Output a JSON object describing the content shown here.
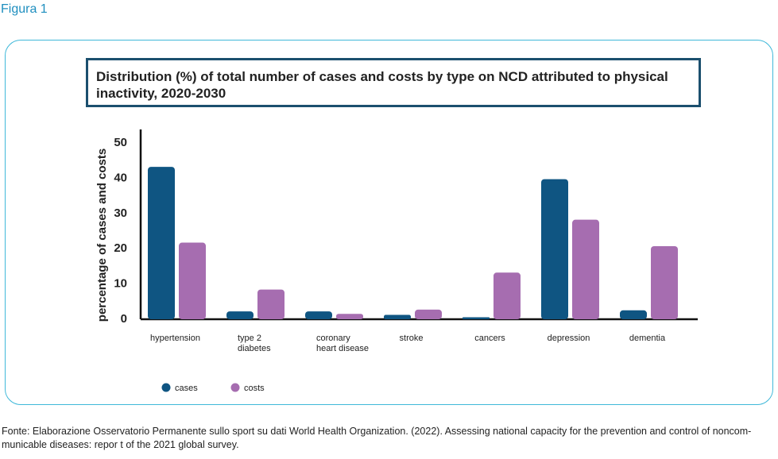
{
  "figure_label": "Figura 1",
  "source_line1": "Fonte: Elaborazione Osservatorio Permanente sullo sport su dati  World Health Organization. (2022). Assessing national capacity for the prevention and control of noncom-",
  "source_line2": "municable diseases: repor t of the 2021 global survey.",
  "colors": {
    "cases": "#0f5582",
    "costs": "#a66db0",
    "border": "#3fb8d9",
    "title_border": "#1b4f6e"
  },
  "chart_data": {
    "type": "bar",
    "title_line1": "Distribution (%) of total number of cases and costs by type on NCD attributed to physical",
    "title_line2": "inactivity, 2020-2030",
    "ylabel": "percentage of cases and costs",
    "ylim": [
      0,
      50
    ],
    "yticks": [
      "0",
      "10",
      "20",
      "30",
      "40",
      "50"
    ],
    "categories": [
      [
        "hypertension"
      ],
      [
        "type 2",
        "diabetes"
      ],
      [
        "coronary",
        "heart disease"
      ],
      [
        "stroke"
      ],
      [
        "cancers"
      ],
      [
        "depression"
      ],
      [
        "dementia"
      ]
    ],
    "series": [
      {
        "name": "cases",
        "values": [
          43,
          2,
          2,
          1,
          0.3,
          39.5,
          2.3
        ]
      },
      {
        "name": "costs",
        "values": [
          21.5,
          8.2,
          1.3,
          2.5,
          13,
          28,
          20.5
        ]
      }
    ],
    "legend_position": "bottom-left"
  }
}
